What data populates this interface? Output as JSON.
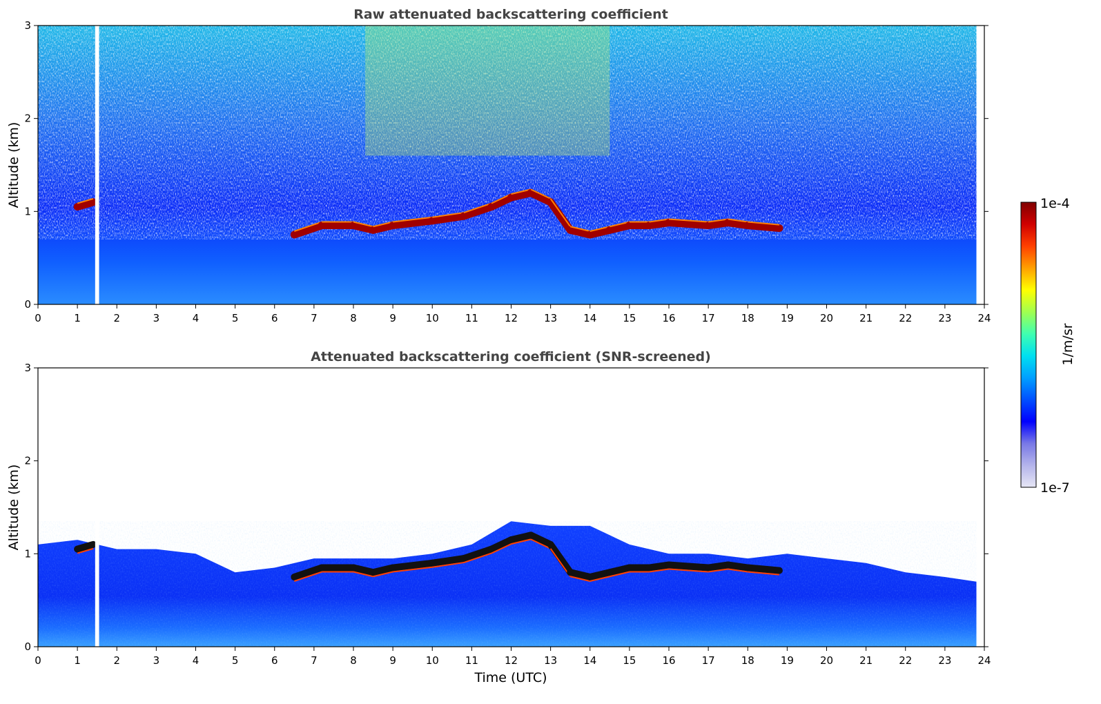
{
  "chart_data": [
    {
      "type": "heatmap",
      "title": "Raw attenuated backscattering coefficient",
      "xlabel": "",
      "ylabel": "Altitude (km)",
      "xlim": [
        0,
        24
      ],
      "ylim": [
        0,
        3
      ],
      "xticks": [
        0,
        1,
        2,
        3,
        4,
        5,
        6,
        7,
        8,
        9,
        10,
        11,
        12,
        13,
        14,
        15,
        16,
        17,
        18,
        19,
        20,
        21,
        22,
        23,
        24
      ],
      "yticks": [
        0,
        1,
        2,
        3
      ],
      "data_gap_hours": [
        1.45,
        1.55
      ],
      "data_end_hour": 23.8,
      "cloud_base_km": [
        [
          1.0,
          1.05
        ],
        [
          1.4,
          1.1
        ],
        [
          6.5,
          0.75
        ],
        [
          7.2,
          0.85
        ],
        [
          8.0,
          0.85
        ],
        [
          8.5,
          0.8
        ],
        [
          9.0,
          0.85
        ],
        [
          10.0,
          0.9
        ],
        [
          10.8,
          0.95
        ],
        [
          11.5,
          1.05
        ],
        [
          12.0,
          1.15
        ],
        [
          12.5,
          1.2
        ],
        [
          13.0,
          1.1
        ],
        [
          13.5,
          0.8
        ],
        [
          14.0,
          0.75
        ],
        [
          14.5,
          0.8
        ],
        [
          15.0,
          0.85
        ],
        [
          15.5,
          0.85
        ],
        [
          16.0,
          0.88
        ],
        [
          17.0,
          0.85
        ],
        [
          17.5,
          0.88
        ],
        [
          18.0,
          0.85
        ],
        [
          18.8,
          0.82
        ]
      ]
    },
    {
      "type": "heatmap",
      "title": "Attenuated backscattering coefficient (SNR-screened)",
      "xlabel": "Time (UTC)",
      "ylabel": "Altitude (km)",
      "xlim": [
        0,
        24
      ],
      "ylim": [
        0,
        3
      ],
      "xticks": [
        0,
        1,
        2,
        3,
        4,
        5,
        6,
        7,
        8,
        9,
        10,
        11,
        12,
        13,
        14,
        15,
        16,
        17,
        18,
        19,
        20,
        21,
        22,
        23,
        24
      ],
      "yticks": [
        0,
        1,
        2,
        3
      ],
      "data_gap_hours": [
        1.45,
        1.55
      ],
      "data_end_hour": 23.8,
      "screened_top_km": [
        [
          0,
          1.1
        ],
        [
          1,
          1.15
        ],
        [
          2,
          1.05
        ],
        [
          3,
          1.05
        ],
        [
          4,
          1.0
        ],
        [
          5,
          0.8
        ],
        [
          6,
          0.85
        ],
        [
          7,
          0.95
        ],
        [
          8,
          0.95
        ],
        [
          9,
          0.95
        ],
        [
          10,
          1.0
        ],
        [
          11,
          1.1
        ],
        [
          12,
          1.35
        ],
        [
          13,
          1.3
        ],
        [
          14,
          1.3
        ],
        [
          15,
          1.1
        ],
        [
          16,
          1.0
        ],
        [
          17,
          1.0
        ],
        [
          18,
          0.95
        ],
        [
          19,
          1.0
        ],
        [
          20,
          0.95
        ],
        [
          21,
          0.9
        ],
        [
          22,
          0.8
        ],
        [
          23,
          0.75
        ],
        [
          23.8,
          0.7
        ]
      ]
    }
  ],
  "colorbar": {
    "label": "1/m/sr",
    "max_label": "1e-4",
    "min_label": "1e-7",
    "colors": [
      "#e6e6f5",
      "#b4b4eb",
      "#7878e6",
      "#0000ff",
      "#0050ff",
      "#00a0ff",
      "#00e0f0",
      "#40ffb0",
      "#a0ff50",
      "#ffff00",
      "#ffa000",
      "#ff4000",
      "#d00000",
      "#800000"
    ]
  }
}
